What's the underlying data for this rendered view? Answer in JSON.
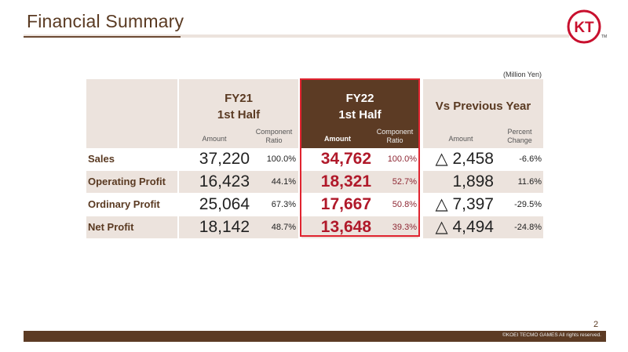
{
  "title": "Financial Summary",
  "unit": "(Million Yen)",
  "columns": {
    "fy21": {
      "line1": "FY21",
      "line2": "1st Half",
      "amount": "Amount",
      "ratio": "Component Ratio"
    },
    "fy22": {
      "line1": "FY22",
      "line2": "1st Half",
      "amount": "Amount",
      "ratio": "Component Ratio"
    },
    "vs": {
      "title": "Vs Previous Year",
      "amount": "Amount",
      "change": "Percent Change"
    }
  },
  "rows": [
    {
      "label": "Sales",
      "fy21_amount": "37,220",
      "fy21_ratio": "100.0%",
      "fy22_amount": "34,762",
      "fy22_ratio": "100.0%",
      "vs_amount": "△ 2,458",
      "vs_change": "-6.6%"
    },
    {
      "label": "Operating Profit",
      "fy21_amount": "16,423",
      "fy21_ratio": "44.1%",
      "fy22_amount": "18,321",
      "fy22_ratio": "52.7%",
      "vs_amount": "1,898",
      "vs_change": "11.6%"
    },
    {
      "label": "Ordinary Profit",
      "fy21_amount": "25,064",
      "fy21_ratio": "67.3%",
      "fy22_amount": "17,667",
      "fy22_ratio": "50.8%",
      "vs_amount": "△ 7,397",
      "vs_change": "-29.5%"
    },
    {
      "label": "Net Profit",
      "fy21_amount": "18,142",
      "fy21_ratio": "48.7%",
      "fy22_amount": "13,648",
      "fy22_ratio": "39.3%",
      "vs_amount": "△ 4,494",
      "vs_change": "-24.8%"
    }
  ],
  "page_number": "2",
  "copyright": "©KOEI TECMO GAMES All rights reserved.",
  "logo": {
    "icon": "koei-tecmo-logo-icon",
    "letters": "KT",
    "tm": "TM"
  },
  "colors": {
    "brown": "#5c3b24",
    "highlight_red": "#e0232f",
    "value_red": "#b0192a",
    "shade": "#ece3dd"
  }
}
